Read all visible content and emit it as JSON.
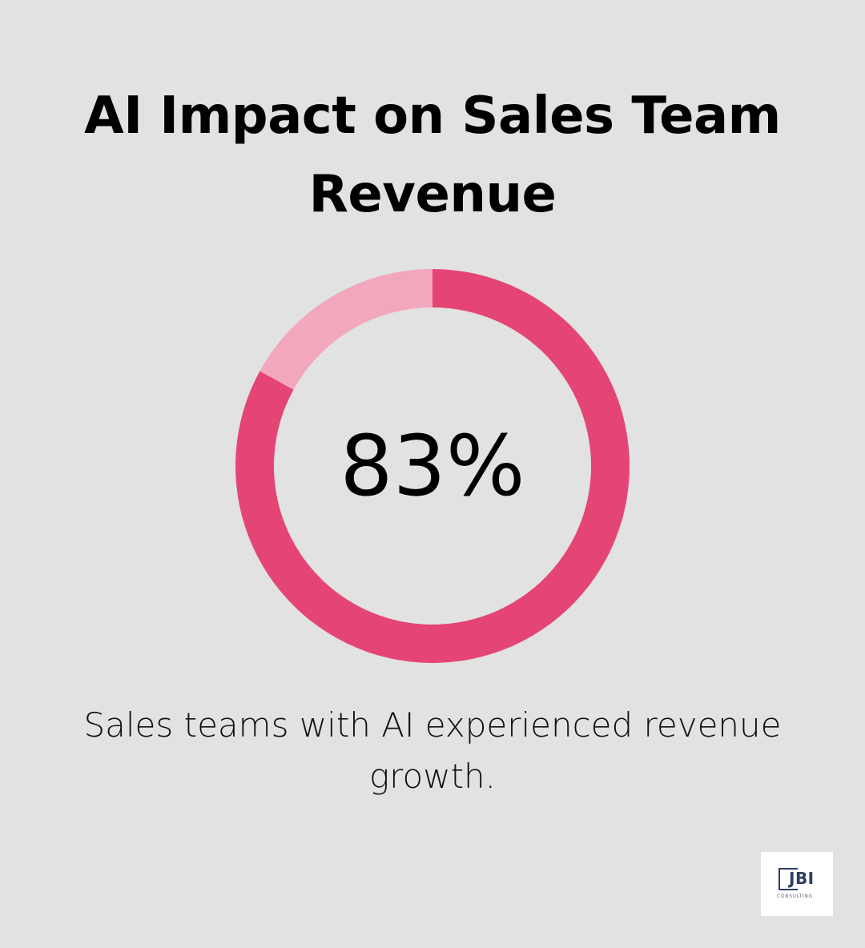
{
  "title": "AI Impact on Sales Team Revenue",
  "chart_data": {
    "type": "pie",
    "variant": "donut",
    "value_percent": 83,
    "remainder_percent": 17,
    "center_label": "83%",
    "caption": "Sales teams with AI experienced revenue growth.",
    "colors": {
      "value": "#e44574",
      "remainder": "#f2a7bd",
      "background": "#e1e2e1"
    }
  },
  "logo": {
    "text": "JBI",
    "subtext": "CONSULTING",
    "color": "#2c3e66"
  }
}
